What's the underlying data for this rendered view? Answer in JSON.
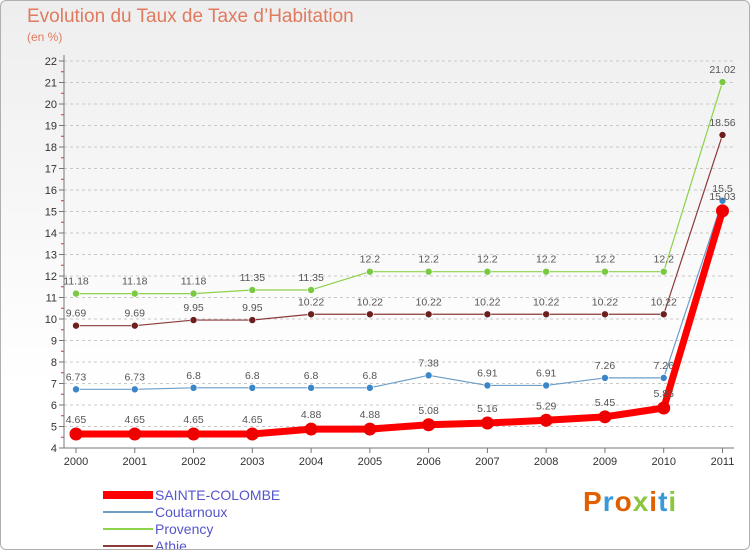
{
  "title": "Evolution du Taux de Taxe d’Habitation",
  "subtitle": "(en %)",
  "logo": {
    "text": "Proxiti",
    "colors": [
      "#e06000",
      "#3a9ad9",
      "#e06000",
      "#8cc63f",
      "#e06000",
      "#3a9ad9",
      "#8cc63f"
    ]
  },
  "chart_data": {
    "type": "line",
    "title": "Evolution du Taux de Taxe d’Habitation",
    "ylabel": "(en %)",
    "xlabel": "",
    "ylim": [
      4,
      22
    ],
    "yticks": [
      4,
      5,
      6,
      7,
      8,
      9,
      10,
      11,
      12,
      13,
      14,
      15,
      16,
      17,
      18,
      19,
      20,
      21,
      22
    ],
    "grid": "horizontal dashed",
    "legend_position": "bottom-left",
    "x": [
      "2000",
      "2001",
      "2002",
      "2003",
      "2004",
      "2005",
      "2006",
      "2007",
      "2008",
      "2009",
      "2010",
      "2011"
    ],
    "series": [
      {
        "name": "Provency",
        "color": "#8cd24a",
        "marker_fill": "#7ac943",
        "width": 1.2,
        "marker": 3.5,
        "values": [
          11.18,
          11.18,
          11.18,
          11.35,
          11.35,
          12.2,
          12.2,
          12.2,
          12.2,
          12.2,
          12.2,
          21.02
        ],
        "labels": [
          "11.18",
          "11.18",
          "11.18",
          "11.35",
          "11.35",
          "12.2",
          "12.2",
          "12.2",
          "12.2",
          "12.2",
          "12.2",
          "21.02"
        ]
      },
      {
        "name": "Athie",
        "color": "#8b3a3a",
        "marker_fill": "#6b1f1f",
        "width": 1.2,
        "marker": 3.5,
        "values": [
          9.69,
          9.69,
          9.95,
          9.95,
          10.22,
          10.22,
          10.22,
          10.22,
          10.22,
          10.22,
          10.22,
          18.56
        ],
        "labels": [
          "9.69",
          "9.69",
          "9.95",
          "9.95",
          "10.22",
          "10.22",
          "10.22",
          "10.22",
          "10.22",
          "10.22",
          "10.22",
          "18.56"
        ]
      },
      {
        "name": "Coutarnoux",
        "color": "#6c9ec8",
        "marker_fill": "#3a86c8",
        "width": 1.2,
        "marker": 3.5,
        "values": [
          6.73,
          6.73,
          6.8,
          6.8,
          6.8,
          6.8,
          7.38,
          6.91,
          6.91,
          7.26,
          7.26,
          15.5
        ],
        "labels": [
          "6.73",
          "6.73",
          "6.8",
          "6.8",
          "6.8",
          "6.8",
          "7.38",
          "6.91",
          "6.91",
          "7.26",
          "7.26",
          "15.5"
        ]
      },
      {
        "name": "SAINTE-COLOMBE",
        "color": "#ff0000",
        "marker_fill": "#ee0000",
        "width": 7,
        "marker": 6.5,
        "values": [
          4.65,
          4.65,
          4.65,
          4.65,
          4.88,
          4.88,
          5.08,
          5.16,
          5.29,
          5.45,
          5.86,
          15.03
        ],
        "labels": [
          "4.65",
          "4.65",
          "4.65",
          "4.65",
          "4.88",
          "4.88",
          "5.08",
          "5.16",
          "5.29",
          "5.45",
          "5.86",
          "15.03"
        ]
      }
    ]
  },
  "legend": [
    {
      "label": "SAINTE-COLOMBE",
      "color": "#ff0000",
      "thickness": 8
    },
    {
      "label": "Coutarnoux",
      "color": "#6c9ec8",
      "thickness": 2
    },
    {
      "label": "Provency",
      "color": "#8cd24a",
      "thickness": 2
    },
    {
      "label": "Athie",
      "color": "#8b3a3a",
      "thickness": 2
    }
  ]
}
